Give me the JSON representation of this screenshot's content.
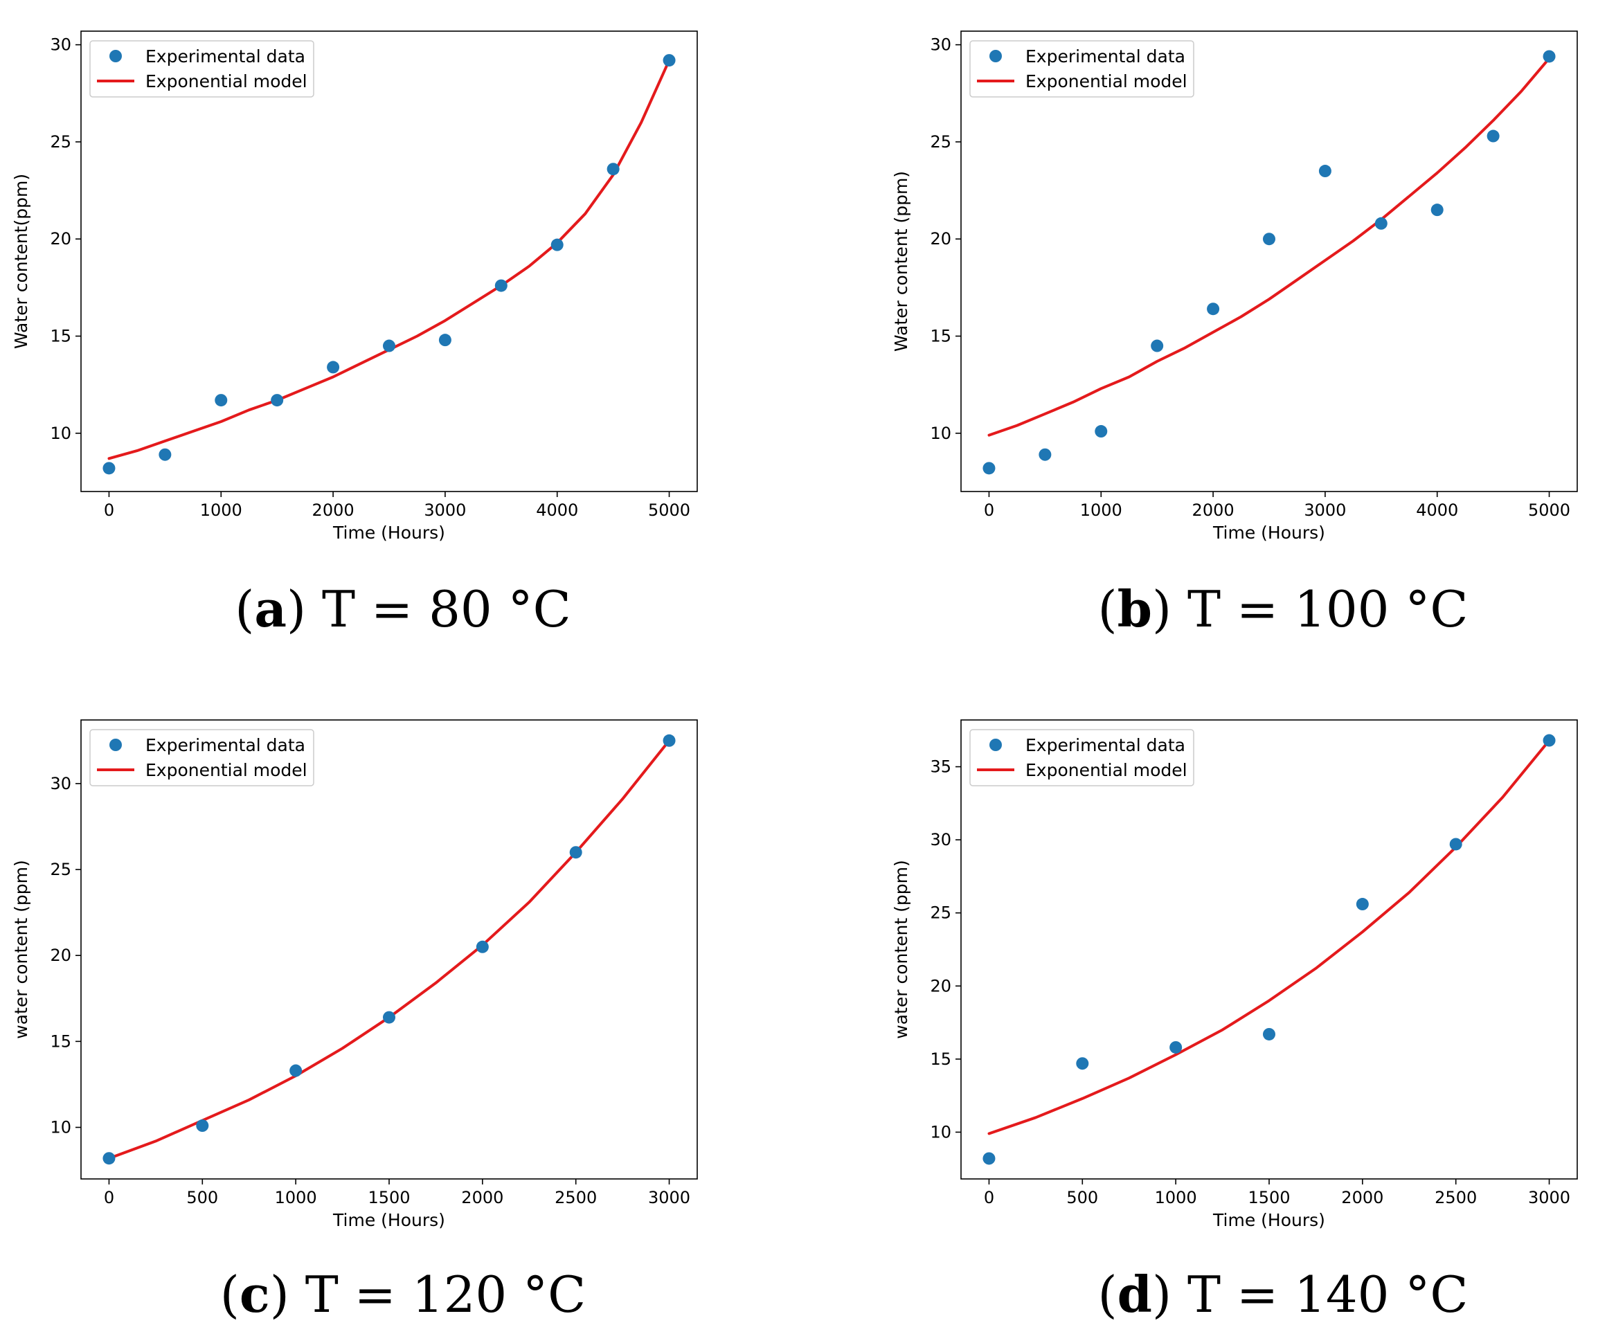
{
  "chart_data": [
    {
      "type": "scatter",
      "caption_letter": "a",
      "caption_text": "T = 80 °C",
      "xlabel": "Time (Hours)",
      "ylabel": "Water content(ppm)",
      "xlim": [
        -250,
        5250
      ],
      "ylim": [
        7.0,
        30.7
      ],
      "xticks": [
        0,
        1000,
        2000,
        3000,
        4000,
        5000
      ],
      "yticks": [
        10,
        15,
        20,
        25,
        30
      ],
      "legend": {
        "position": "top-left",
        "scatter_label": "Experimental data",
        "line_label": "Exponential model"
      },
      "series": [
        {
          "name": "Experimental data",
          "kind": "scatter",
          "color": "#1f77b4",
          "x": [
            0,
            500,
            1000,
            1500,
            2000,
            2500,
            3000,
            3500,
            4000,
            4500,
            5000
          ],
          "y": [
            8.2,
            8.9,
            11.7,
            11.7,
            13.4,
            14.5,
            14.8,
            17.6,
            19.7,
            23.6,
            29.2
          ]
        },
        {
          "name": "Exponential model",
          "kind": "line",
          "color": "#e41a1c",
          "x": [
            0,
            250,
            500,
            750,
            1000,
            1250,
            1500,
            1750,
            2000,
            2250,
            2500,
            2750,
            3000,
            3250,
            3500,
            3750,
            4000,
            4250,
            4500,
            4750,
            5000
          ],
          "y": [
            8.7,
            9.1,
            9.6,
            10.1,
            10.6,
            11.2,
            11.7,
            12.3,
            12.9,
            13.6,
            14.3,
            15.0,
            15.8,
            16.7,
            17.6,
            18.6,
            19.8,
            21.3,
            23.3,
            26.0,
            29.2
          ]
        }
      ]
    },
    {
      "type": "scatter",
      "caption_letter": "b",
      "caption_text": "T = 100 °C",
      "xlabel": "Time (Hours)",
      "ylabel": "Water content (ppm)",
      "xlim": [
        -250,
        5250
      ],
      "ylim": [
        7.0,
        30.7
      ],
      "xticks": [
        0,
        1000,
        2000,
        3000,
        4000,
        5000
      ],
      "yticks": [
        10,
        15,
        20,
        25,
        30
      ],
      "legend": {
        "position": "top-left",
        "scatter_label": "Experimental data",
        "line_label": "Exponential model"
      },
      "series": [
        {
          "name": "Experimental data",
          "kind": "scatter",
          "color": "#1f77b4",
          "x": [
            0,
            500,
            1000,
            1500,
            2000,
            2500,
            3000,
            3500,
            4000,
            4500,
            5000
          ],
          "y": [
            8.2,
            8.9,
            10.1,
            14.5,
            16.4,
            20.0,
            23.5,
            20.8,
            21.5,
            25.3,
            29.4
          ]
        },
        {
          "name": "Exponential model",
          "kind": "line",
          "color": "#e41a1c",
          "x": [
            0,
            250,
            500,
            750,
            1000,
            1250,
            1500,
            1750,
            2000,
            2250,
            2500,
            2750,
            3000,
            3250,
            3500,
            3750,
            4000,
            4250,
            4500,
            4750,
            5000
          ],
          "y": [
            9.9,
            10.4,
            11.0,
            11.6,
            12.3,
            12.9,
            13.7,
            14.4,
            15.2,
            16.0,
            16.9,
            17.9,
            18.9,
            19.9,
            21.0,
            22.2,
            23.4,
            24.7,
            26.1,
            27.6,
            29.3
          ]
        }
      ]
    },
    {
      "type": "scatter",
      "caption_letter": "c",
      "caption_text": "T = 120 °C",
      "xlabel": "Time (Hours)",
      "ylabel": "water content (ppm)",
      "xlim": [
        -150,
        3150
      ],
      "ylim": [
        7.0,
        33.7
      ],
      "xticks": [
        0,
        500,
        1000,
        1500,
        2000,
        2500,
        3000
      ],
      "yticks": [
        10,
        15,
        20,
        25,
        30
      ],
      "legend": {
        "position": "top-left",
        "scatter_label": "Experimental data",
        "line_label": "Exponential model"
      },
      "series": [
        {
          "name": "Experimental data",
          "kind": "scatter",
          "color": "#1f77b4",
          "x": [
            0,
            500,
            1000,
            1500,
            2000,
            2500,
            3000
          ],
          "y": [
            8.2,
            10.1,
            13.3,
            16.4,
            20.5,
            26.0,
            32.5
          ]
        },
        {
          "name": "Exponential model",
          "kind": "line",
          "color": "#e41a1c",
          "x": [
            0,
            250,
            500,
            750,
            1000,
            1250,
            1500,
            1750,
            2000,
            2250,
            2500,
            2750,
            3000
          ],
          "y": [
            8.2,
            9.2,
            10.4,
            11.6,
            13.0,
            14.6,
            16.4,
            18.4,
            20.6,
            23.1,
            26.0,
            29.1,
            32.5
          ]
        }
      ]
    },
    {
      "type": "scatter",
      "caption_letter": "d",
      "caption_text": "T = 140 °C",
      "xlabel": "Time (Hours)",
      "ylabel": "water content (ppm)",
      "xlim": [
        -150,
        3150
      ],
      "ylim": [
        6.8,
        38.2
      ],
      "xticks": [
        0,
        500,
        1000,
        1500,
        2000,
        2500,
        3000
      ],
      "yticks": [
        10,
        15,
        20,
        25,
        30,
        35
      ],
      "legend": {
        "position": "top-left",
        "scatter_label": "Experimental data",
        "line_label": "Exponential model"
      },
      "series": [
        {
          "name": "Experimental data",
          "kind": "scatter",
          "color": "#1f77b4",
          "x": [
            0,
            500,
            1000,
            1500,
            2000,
            2500,
            3000
          ],
          "y": [
            8.2,
            14.7,
            15.8,
            16.7,
            25.6,
            29.7,
            36.8
          ]
        },
        {
          "name": "Exponential model",
          "kind": "line",
          "color": "#e41a1c",
          "x": [
            0,
            250,
            500,
            750,
            1000,
            1250,
            1500,
            1750,
            2000,
            2250,
            2500,
            2750,
            3000
          ],
          "y": [
            9.9,
            11.0,
            12.3,
            13.7,
            15.3,
            17.0,
            19.0,
            21.2,
            23.7,
            26.4,
            29.5,
            32.9,
            36.8
          ]
        }
      ]
    }
  ]
}
